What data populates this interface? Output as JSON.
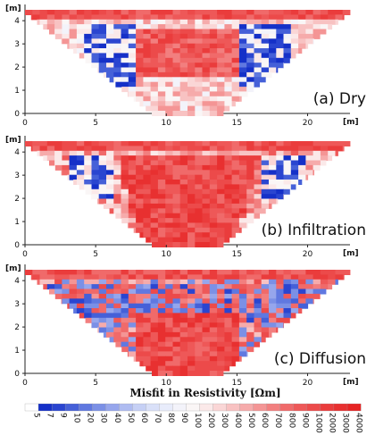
{
  "chart_data": {
    "type": "heatmap",
    "x_unit": "[m]",
    "y_unit": "[m]",
    "xlim": [
      0,
      23
    ],
    "ylim": [
      0,
      4.7
    ],
    "x_ticks": [
      0,
      5,
      10,
      15,
      20
    ],
    "y_ticks": [
      0,
      1,
      2,
      3,
      4
    ],
    "colorbar": {
      "title": "Misfit in Resistivity [Ωm]",
      "ticks": [
        "5",
        "7",
        "9",
        "10",
        "20",
        "30",
        "40",
        "50",
        "60",
        "70",
        "80",
        "90",
        "100",
        "200",
        "300",
        "400",
        "500",
        "600",
        "700",
        "800",
        "900",
        "1000",
        "2000",
        "3000",
        "4000"
      ],
      "colors": [
        "#ffffff",
        "#1530c8",
        "#2a45d0",
        "#4560d8",
        "#6078e0",
        "#7b90e6",
        "#96a6ec",
        "#afbcf1",
        "#c6d0f5",
        "#d9e0f8",
        "#e8ecfb",
        "#f3f3fa",
        "#faf6f6",
        "#fbe9e9",
        "#fad6d6",
        "#f8c2c2",
        "#f6abab",
        "#f49595",
        "#f27f7f",
        "#f06a6a",
        "#ee5858",
        "#ec4a4a",
        "#ea3c3c",
        "#e83030",
        "#e62424"
      ]
    },
    "panels": [
      {
        "label": "(a) Dry"
      },
      {
        "label": "(b) Infiltration"
      },
      {
        "label": "(c) Diffusion"
      }
    ]
  }
}
